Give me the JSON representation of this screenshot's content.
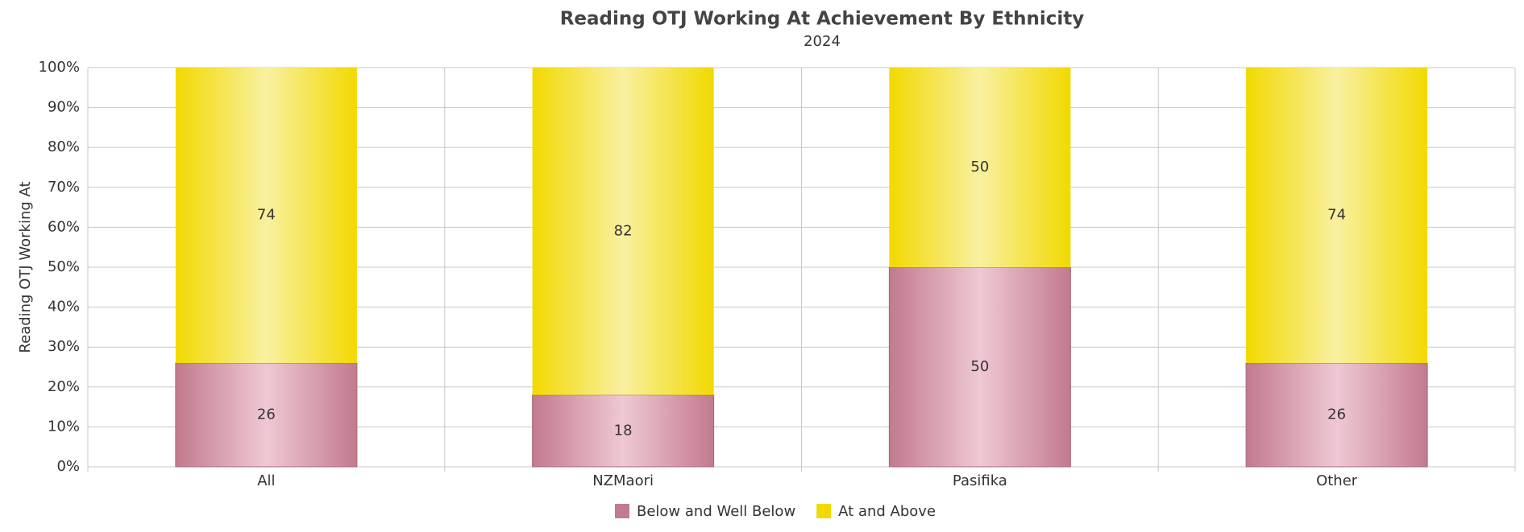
{
  "chart_data": {
    "type": "stacked_bar",
    "title": "Reading OTJ Working At Achievement By Ethnicity",
    "subtitle": "2024",
    "y_label": "Reading OTJ Working At",
    "categories": [
      "All",
      "NZMaori",
      "Pasifika",
      "Other"
    ],
    "series": [
      {
        "name": "Below and Well Below",
        "color": "#c27a8e",
        "values": [
          26,
          18,
          50,
          26
        ]
      },
      {
        "name": "At and Above",
        "color": "#f2d900",
        "values": [
          74,
          82,
          50,
          74
        ]
      }
    ],
    "ylim": [
      0,
      100
    ],
    "yticks": [
      {
        "value": 0,
        "label": "0%"
      },
      {
        "value": 10,
        "label": "10%"
      },
      {
        "value": 20,
        "label": "20%"
      },
      {
        "value": 30,
        "label": "30%"
      },
      {
        "value": 40,
        "label": "40%"
      },
      {
        "value": 50,
        "label": "50%"
      },
      {
        "value": 60,
        "label": "60%"
      },
      {
        "value": 70,
        "label": "70%"
      },
      {
        "value": 80,
        "label": "80%"
      },
      {
        "value": 90,
        "label": "90%"
      },
      {
        "value": 100,
        "label": "100%"
      }
    ],
    "grid": true,
    "legend": "bottom"
  }
}
